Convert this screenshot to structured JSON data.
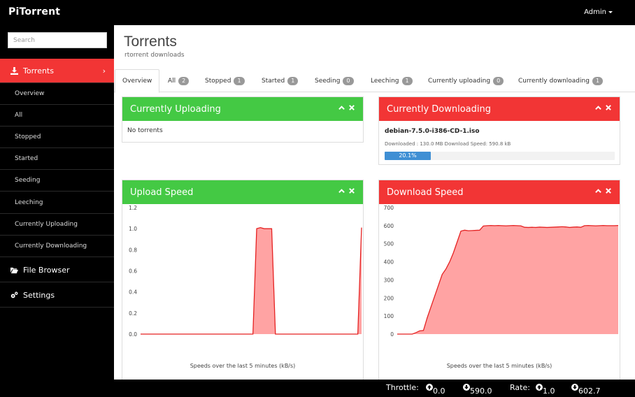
{
  "app": {
    "brand": "PiTorrent",
    "user_menu": "Admin"
  },
  "sidebar": {
    "search_placeholder": "Search",
    "torrents_label": "Torrents",
    "sub_items": [
      "Overview",
      "All",
      "Stopped",
      "Started",
      "Seeding",
      "Leeching",
      "Currently Uploading",
      "Currently Downloading"
    ],
    "file_browser_label": "File Browser",
    "settings_label": "Settings"
  },
  "page": {
    "title": "Torrents",
    "subtitle": "rtorrent downloads"
  },
  "tabs": [
    {
      "label": "Overview",
      "count": ""
    },
    {
      "label": "All",
      "count": "2"
    },
    {
      "label": "Stopped",
      "count": "1"
    },
    {
      "label": "Started",
      "count": "1"
    },
    {
      "label": "Seeding",
      "count": "0"
    },
    {
      "label": "Leeching",
      "count": "1"
    },
    {
      "label": "Currently uploading",
      "count": "0"
    },
    {
      "label": "Currently downloading",
      "count": "1"
    }
  ],
  "panels": {
    "uploading": {
      "title": "Currently Uploading",
      "empty_text": "No torrents"
    },
    "downloading": {
      "title": "Currently Downloading",
      "torrent_name": "debian-7.5.0-i386-CD-1.iso",
      "torrent_meta": "Downloaded : 130.0 MB Download Speed: 590.8 kB",
      "progress_label": "20.1%",
      "progress": 0.201
    },
    "upload_speed": {
      "title": "Upload Speed",
      "caption": "Speeds over the last 5 minutes (kB/s)"
    },
    "download_speed": {
      "title": "Download Speed",
      "caption": "Speeds over the last 5 minutes (kB/s)"
    }
  },
  "colors": {
    "accent_red": "#f23535",
    "accent_green": "#44c944",
    "progress_blue": "#3f8fd4",
    "chart_fill": "#ffa3a3",
    "chart_line": "#e52222"
  },
  "chart_data": [
    {
      "type": "area",
      "title": "",
      "xlabel": "Speeds over the last 5 minutes (kB/s)",
      "ylabel": "",
      "ylim": [
        0,
        1.2
      ],
      "yticks": [
        "0.0",
        "0.2",
        "0.4",
        "0.6",
        "0.8",
        "1.0",
        "1.2"
      ],
      "grid": false,
      "series": [
        {
          "x": [
            0,
            1,
            2,
            3,
            4,
            5,
            6,
            7,
            8,
            9,
            10,
            11,
            12,
            13,
            14,
            15,
            16,
            17,
            18,
            19,
            20,
            21,
            22,
            23,
            24,
            25,
            26,
            27,
            28,
            29,
            30,
            31,
            32,
            33,
            34,
            35,
            36,
            37,
            38,
            39,
            40,
            41,
            42,
            43,
            44,
            45,
            46,
            47,
            48,
            49,
            50,
            51,
            52,
            53,
            54,
            55,
            56,
            57,
            58,
            59
          ],
          "values": [
            0,
            0,
            0,
            0,
            0,
            0,
            0,
            0,
            0,
            0,
            0,
            0,
            0,
            0,
            0,
            0,
            0,
            0,
            0,
            0,
            0,
            0,
            0,
            0,
            0,
            0,
            0,
            0,
            0,
            0,
            0,
            1.0,
            1.01,
            1.0,
            1.0,
            1.0,
            0,
            0,
            0,
            0,
            0,
            0,
            0,
            0,
            0,
            0,
            0,
            0,
            0,
            0,
            0,
            0,
            0,
            0,
            0,
            0,
            0,
            0,
            0,
            1.01
          ]
        }
      ]
    },
    {
      "type": "area",
      "title": "",
      "xlabel": "Speeds over the last 5 minutes (kB/s)",
      "ylabel": "",
      "ylim": [
        0,
        700
      ],
      "yticks": [
        "0",
        "100",
        "200",
        "300",
        "400",
        "500",
        "600",
        "700"
      ],
      "grid": false,
      "series": [
        {
          "x": [
            0,
            1,
            2,
            3,
            4,
            5,
            6,
            7,
            8,
            9,
            10,
            11,
            12,
            13,
            14,
            15,
            16,
            17,
            18,
            19,
            20,
            21,
            22,
            23,
            24,
            25,
            26,
            27,
            28,
            29,
            30,
            31,
            32,
            33,
            34,
            35,
            36,
            37,
            38,
            39,
            40,
            41,
            42,
            43,
            44,
            45,
            46,
            47,
            48,
            49,
            50,
            51,
            52,
            53,
            54,
            55,
            56,
            57,
            58,
            59
          ],
          "values": [
            0,
            0,
            0,
            0,
            0,
            8,
            18,
            20,
            90,
            150,
            210,
            270,
            330,
            360,
            400,
            450,
            510,
            570,
            575,
            572,
            573,
            574,
            575,
            598,
            600,
            601,
            600,
            601,
            600,
            599,
            600,
            601,
            600,
            599,
            591,
            590,
            591,
            590,
            592,
            591,
            590,
            591,
            592,
            593,
            594,
            593,
            590,
            592,
            593,
            591,
            600,
            601,
            600,
            599,
            600,
            601,
            600,
            600,
            600,
            601
          ]
        }
      ]
    }
  ],
  "footer": {
    "throttle_label": "Throttle:",
    "throttle_up": "0.0 kB",
    "throttle_down": "590.0 kB",
    "rate_label": "Rate:",
    "rate_up": "1.0 kB",
    "rate_down": "602.7 kB"
  }
}
